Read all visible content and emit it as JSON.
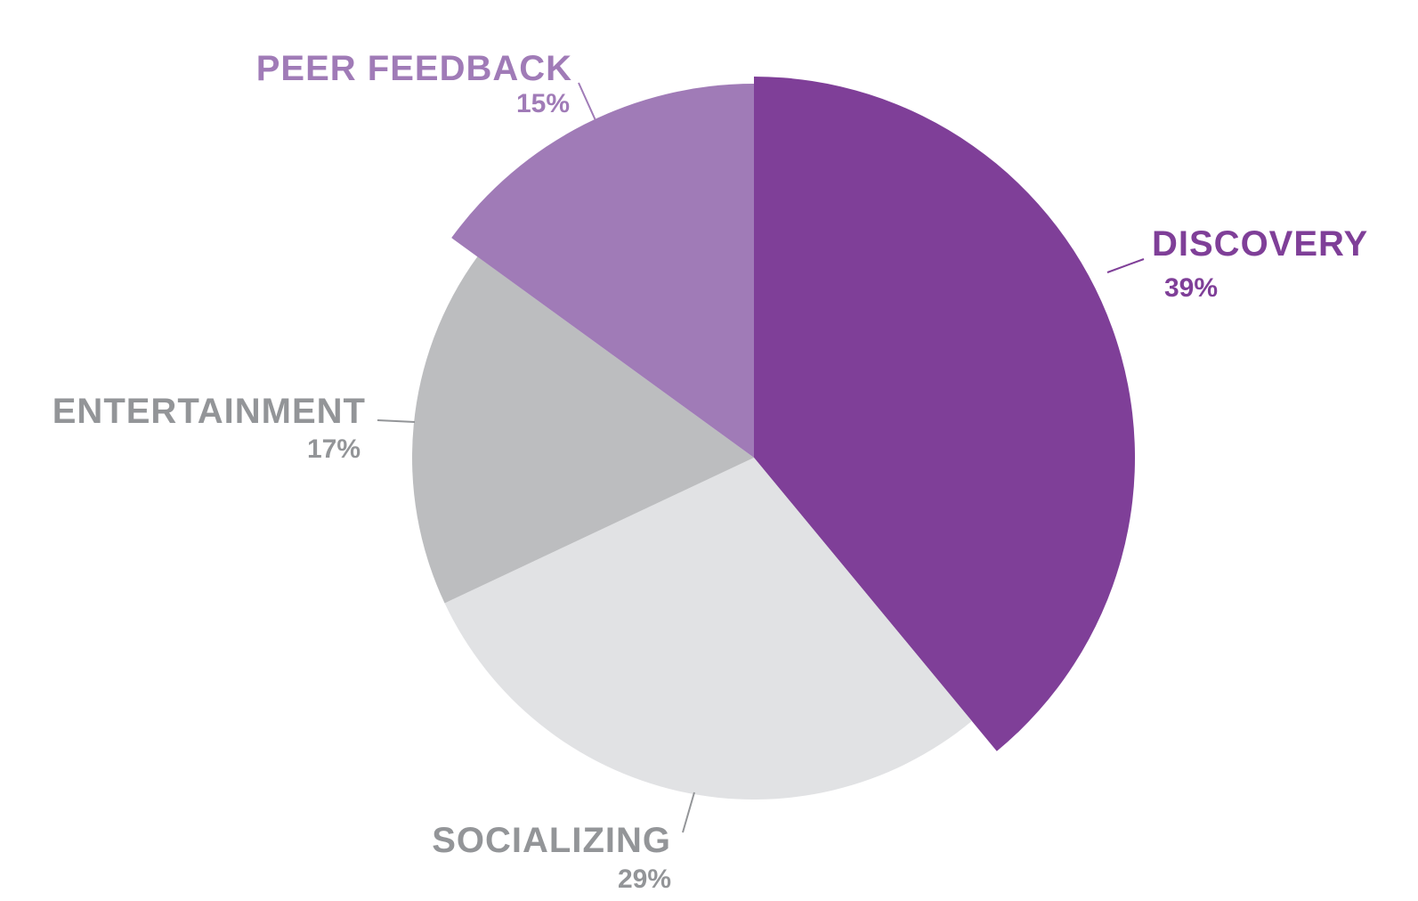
{
  "chart_data": {
    "type": "pie",
    "title": "",
    "slices": [
      {
        "label": "DISCOVERY",
        "value": 39,
        "display": "39%",
        "color": "#7f3f98",
        "text_color": "#7f3f98",
        "exploded": true
      },
      {
        "label": "SOCIALIZING",
        "value": 29,
        "display": "29%",
        "color": "#e1e2e4",
        "text_color": "#939598",
        "exploded": false
      },
      {
        "label": "ENTERTAINMENT",
        "value": 17,
        "display": "17%",
        "color": "#bcbdbf",
        "text_color": "#939598",
        "exploded": false
      },
      {
        "label": "PEER FEEDBACK",
        "value": 15,
        "display": "15%",
        "color": "#a07bb7",
        "text_color": "#a07bb7",
        "exploded": true
      }
    ],
    "leader_line_colors": {
      "DISCOVERY": "#7f3f98",
      "SOCIALIZING": "#939598",
      "ENTERTAINMENT": "#939598",
      "PEER FEEDBACK": "#a07bb7"
    }
  }
}
